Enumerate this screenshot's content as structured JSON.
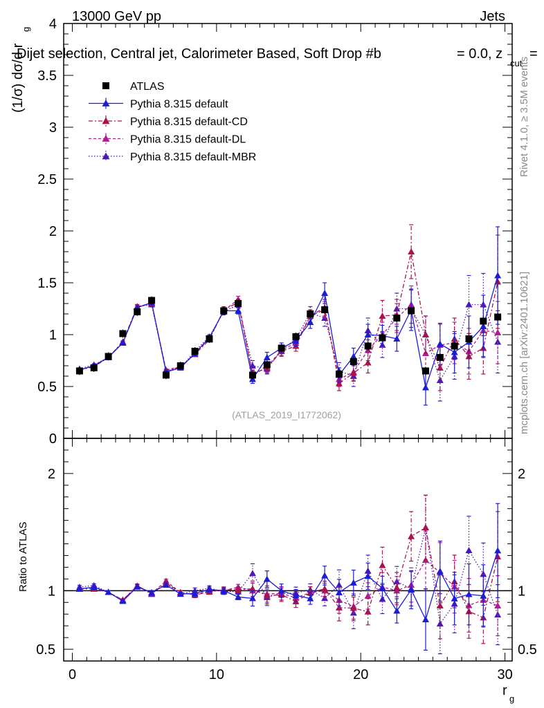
{
  "header": {
    "energy": "13000 GeV pp",
    "category": "Jets",
    "selection": "Dijet selection, Central jet, Calorimeter Based, Soft Drop #b",
    "beta_part": "= 0.0, z",
    "zcut_sub": "cut",
    "zcut_tail": "="
  },
  "side": {
    "rivet": "Rivet 4.1.0, ≥ 3.5M events",
    "mcplots": "mcplots.cern.ch [arXiv:2401.10621]"
  },
  "watermark": "(ATLAS_2019_I1772062)",
  "axes": {
    "ylabel_main_base": "(1/σ) dσ/d r",
    "ylabel_main_sub": "g",
    "ylabel_ratio": "Ratio to ATLAS",
    "xlabel": "r",
    "xlabel_sub": "g"
  },
  "chart_data": {
    "type": "scatter",
    "title": "Dijet selection, Central jet, Calorimeter Based, Soft Drop",
    "x": [
      0.5,
      1.5,
      2.5,
      3.5,
      4.5,
      5.5,
      6.5,
      7.5,
      8.5,
      9.5,
      10.5,
      11.5,
      12.5,
      13.5,
      14.5,
      15.5,
      16.5,
      17.5,
      18.5,
      19.5,
      20.5,
      21.5,
      22.5,
      23.5,
      24.5,
      25.5,
      26.5,
      27.5,
      28.5,
      29.5
    ],
    "xlim": [
      -0.6,
      30.5
    ],
    "xticks": [
      0,
      10,
      20,
      30
    ],
    "main": {
      "ylim": [
        0,
        4
      ],
      "yticks": [
        0,
        0.5,
        1,
        1.5,
        2,
        2.5,
        3,
        3.5,
        4
      ]
    },
    "ratio": {
      "ylim": [
        0.4,
        2.3
      ],
      "yticks": [
        0.5,
        1,
        2
      ],
      "reference": 1
    },
    "legend": {
      "position": "top-left",
      "labels": [
        "ATLAS",
        "Pythia 8.315 default",
        "Pythia 8.315 default-CD",
        "Pythia 8.315 default-DL",
        "Pythia 8.315 default-MBR"
      ]
    },
    "data": {
      "name": "ATLAS",
      "color": "#000000",
      "values": [
        0.65,
        0.68,
        0.79,
        1.01,
        1.22,
        1.33,
        0.61,
        0.7,
        0.84,
        0.96,
        1.23,
        1.3,
        0.61,
        0.71,
        0.87,
        0.98,
        1.2,
        1.24,
        0.62,
        0.74,
        0.89,
        0.97,
        1.16,
        1.23,
        0.65,
        0.78,
        0.89,
        0.96,
        1.13,
        1.17
      ]
    },
    "series": [
      {
        "name": "Pythia 8.315 default",
        "color": "#1c1cd6",
        "dash": "",
        "values": [
          0.66,
          0.7,
          0.78,
          0.92,
          1.26,
          1.31,
          0.64,
          0.68,
          0.82,
          0.97,
          1.23,
          1.23,
          0.57,
          0.78,
          0.87,
          0.94,
          1.12,
          1.4,
          0.61,
          0.79,
          1.0,
          0.99,
          0.96,
          1.24,
          0.49,
          0.91,
          0.83,
          0.93,
          1.08,
          1.57
        ],
        "errors": [
          0.01,
          0.01,
          0.01,
          0.01,
          0.02,
          0.02,
          0.01,
          0.01,
          0.02,
          0.02,
          0.03,
          0.03,
          0.04,
          0.05,
          0.05,
          0.05,
          0.06,
          0.1,
          0.07,
          0.08,
          0.1,
          0.1,
          0.12,
          0.2,
          0.17,
          0.2,
          0.2,
          0.25,
          0.3,
          0.47
        ]
      },
      {
        "name": "Pythia 8.315 default-CD",
        "color": "#a8124f",
        "dash": "6,3,2,3",
        "values": [
          0.66,
          0.69,
          0.78,
          0.93,
          1.27,
          1.3,
          0.65,
          0.69,
          0.81,
          0.95,
          1.24,
          1.31,
          0.62,
          0.68,
          0.84,
          0.89,
          1.18,
          1.26,
          0.53,
          0.63,
          0.73,
          1.18,
          1.19,
          1.8,
          1.0,
          0.68,
          0.96,
          0.79,
          0.87,
          1.51
        ],
        "errors": [
          0.01,
          0.01,
          0.01,
          0.01,
          0.02,
          0.02,
          0.01,
          0.01,
          0.02,
          0.02,
          0.03,
          0.03,
          0.04,
          0.05,
          0.05,
          0.05,
          0.06,
          0.08,
          0.07,
          0.08,
          0.1,
          0.15,
          0.15,
          0.26,
          0.18,
          0.22,
          0.2,
          0.22,
          0.25,
          0.45
        ]
      },
      {
        "name": "Pythia 8.315 default-DL",
        "color": "#b01a8f",
        "dash": "4,3",
        "values": [
          0.66,
          0.7,
          0.78,
          0.93,
          1.27,
          1.3,
          0.66,
          0.69,
          0.81,
          0.96,
          1.23,
          1.34,
          0.61,
          0.69,
          0.85,
          0.92,
          1.18,
          1.24,
          0.57,
          0.64,
          0.85,
          1.0,
          1.16,
          1.29,
          0.82,
          0.9,
          0.92,
          0.84,
          1.04,
          1.02
        ],
        "errors": [
          0.01,
          0.01,
          0.01,
          0.01,
          0.02,
          0.02,
          0.01,
          0.01,
          0.02,
          0.02,
          0.03,
          0.03,
          0.04,
          0.05,
          0.05,
          0.05,
          0.06,
          0.08,
          0.07,
          0.08,
          0.1,
          0.12,
          0.14,
          0.18,
          0.16,
          0.2,
          0.2,
          0.22,
          0.25,
          0.3
        ]
      },
      {
        "name": "Pythia 8.315 default-MBR",
        "color": "#4a18b8",
        "dash": "1.5,2.5",
        "values": [
          0.67,
          0.71,
          0.78,
          0.92,
          1.27,
          1.29,
          0.65,
          0.68,
          0.84,
          0.98,
          1.22,
          1.29,
          0.7,
          0.67,
          0.85,
          0.96,
          1.21,
          1.16,
          0.65,
          0.6,
          1.04,
          0.9,
          1.25,
          1.25,
          1.0,
          0.56,
          0.79,
          1.29,
          1.29,
          0.93
        ],
        "errors": [
          0.01,
          0.01,
          0.01,
          0.01,
          0.02,
          0.02,
          0.01,
          0.01,
          0.02,
          0.02,
          0.03,
          0.03,
          0.05,
          0.05,
          0.05,
          0.05,
          0.06,
          0.08,
          0.08,
          0.1,
          0.12,
          0.12,
          0.15,
          0.18,
          0.18,
          0.2,
          0.22,
          0.28,
          0.3,
          0.3
        ]
      }
    ]
  }
}
